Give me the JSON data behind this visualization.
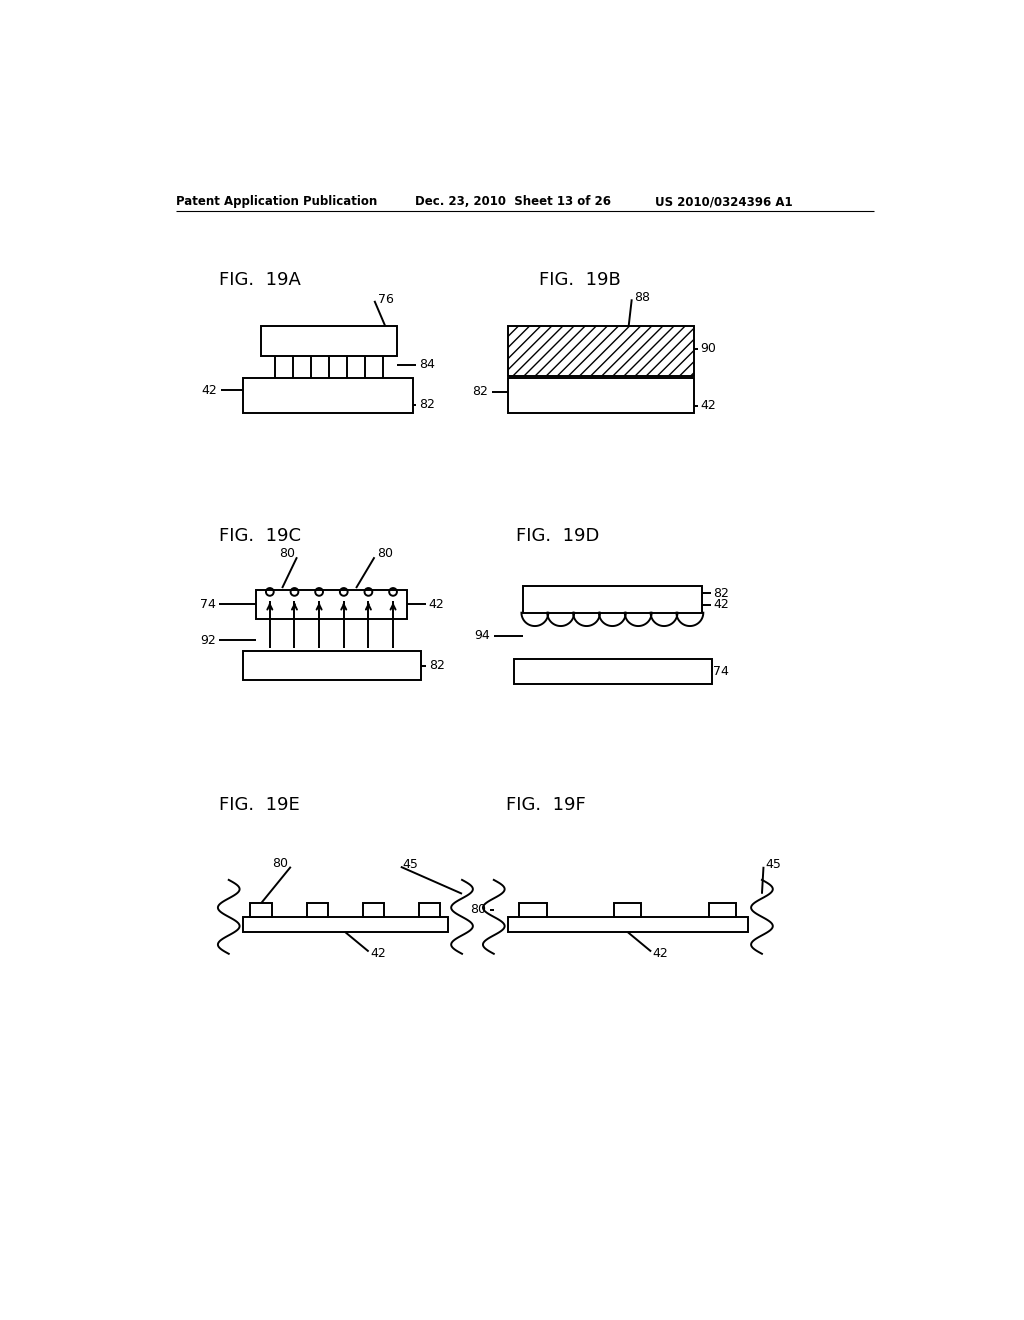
{
  "header_left": "Patent Application Publication",
  "header_mid": "Dec. 23, 2010  Sheet 13 of 26",
  "header_right": "US 2010/0324396 A1",
  "background_color": "#ffffff",
  "line_color": "#000000",
  "fig_label_fontsize": 13,
  "annotation_fontsize": 9,
  "header_fontsize": 8.5
}
